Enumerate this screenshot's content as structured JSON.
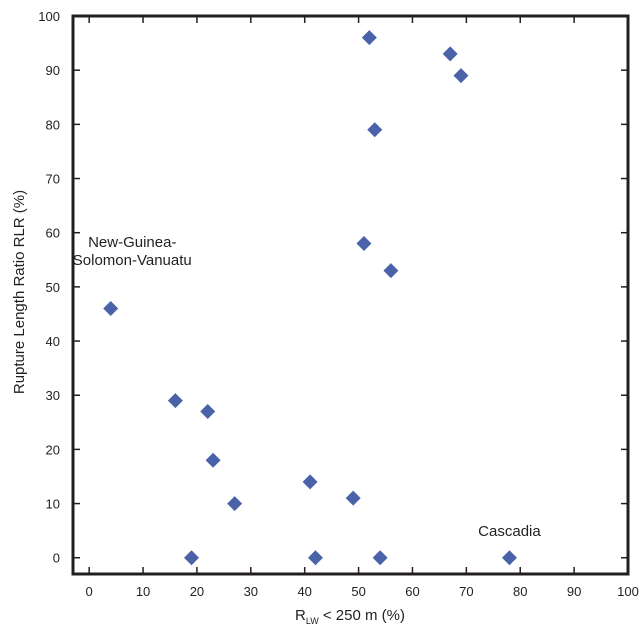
{
  "chart_data": {
    "type": "scatter",
    "title": "",
    "xlabel": {
      "main": "R",
      "sub": "LW",
      "rest": " < 250 m (%)"
    },
    "ylabel": "Rupture Length Ratio RLR (%)",
    "xlim": [
      -3,
      100
    ],
    "ylim": [
      -3,
      100
    ],
    "xticks": [
      "0",
      "10",
      "20",
      "30",
      "40",
      "50",
      "60",
      "70",
      "80",
      "90",
      "100"
    ],
    "yticks": [
      "0",
      "10",
      "20",
      "30",
      "40",
      "50",
      "60",
      "70",
      "80",
      "90",
      "100"
    ],
    "grid": false,
    "marker": "diamond",
    "marker_color": "#4a63a8",
    "points": [
      {
        "x": 52,
        "y": 96
      },
      {
        "x": 67,
        "y": 93
      },
      {
        "x": 69,
        "y": 89
      },
      {
        "x": 53,
        "y": 79
      },
      {
        "x": 51,
        "y": 58
      },
      {
        "x": 56,
        "y": 53
      },
      {
        "x": 4,
        "y": 46
      },
      {
        "x": 16,
        "y": 29
      },
      {
        "x": 22,
        "y": 27
      },
      {
        "x": 23,
        "y": 18
      },
      {
        "x": 41,
        "y": 14
      },
      {
        "x": 49,
        "y": 11
      },
      {
        "x": 27,
        "y": 10
      },
      {
        "x": 19,
        "y": 0
      },
      {
        "x": 42,
        "y": 0
      },
      {
        "x": 54,
        "y": 0
      },
      {
        "x": 78,
        "y": 0
      }
    ],
    "annotations": [
      {
        "lines": [
          "New-Guinea-",
          "Solomon-Vanuatu"
        ],
        "x": 8,
        "y": 54
      },
      {
        "lines": [
          "Cascadia"
        ],
        "x": 78,
        "y": 4
      }
    ]
  }
}
